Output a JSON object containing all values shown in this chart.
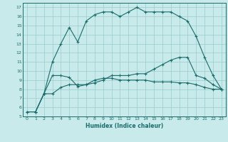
{
  "title": "",
  "xlabel": "Humidex (Indice chaleur)",
  "xlim": [
    -0.5,
    23.5
  ],
  "ylim": [
    5,
    17.5
  ],
  "xticks": [
    0,
    1,
    2,
    3,
    4,
    5,
    6,
    7,
    8,
    9,
    10,
    11,
    12,
    13,
    14,
    15,
    16,
    17,
    18,
    19,
    20,
    21,
    22,
    23
  ],
  "yticks": [
    5,
    6,
    7,
    8,
    9,
    10,
    11,
    12,
    13,
    14,
    15,
    16,
    17
  ],
  "bg_color": "#c8eaea",
  "line_color": "#1a6b6b",
  "grid_color": "#99cccc",
  "curve1_x": [
    0,
    1,
    2,
    3,
    4,
    5,
    6,
    7,
    8,
    9,
    10,
    11,
    12,
    13,
    14,
    15,
    16,
    17,
    18,
    19,
    20,
    21,
    22,
    23
  ],
  "curve1_y": [
    5.5,
    5.5,
    7.5,
    9.5,
    9.5,
    9.3,
    8.3,
    8.5,
    9.0,
    9.2,
    9.2,
    9.0,
    9.0,
    9.0,
    9.0,
    8.8,
    8.8,
    8.8,
    8.7,
    8.7,
    8.5,
    8.2,
    8.0,
    8.0
  ],
  "curve2_x": [
    0,
    1,
    2,
    3,
    4,
    5,
    6,
    7,
    8,
    9,
    10,
    11,
    12,
    13,
    14,
    15,
    16,
    17,
    18,
    19,
    20,
    21,
    22,
    23
  ],
  "curve2_y": [
    5.5,
    5.5,
    7.5,
    7.5,
    8.2,
    8.5,
    8.5,
    8.5,
    8.7,
    9.0,
    9.5,
    9.5,
    9.5,
    9.7,
    9.7,
    10.2,
    10.7,
    11.2,
    11.5,
    11.5,
    9.5,
    9.2,
    8.5,
    8.0
  ],
  "curve3_x": [
    1,
    2,
    3,
    4,
    5,
    6,
    7,
    8,
    9,
    10,
    11,
    12,
    13,
    14,
    15,
    16,
    17,
    18,
    19,
    20,
    21,
    22,
    23
  ],
  "curve3_y": [
    5.5,
    7.5,
    11.0,
    13.0,
    14.8,
    13.2,
    15.5,
    16.2,
    16.5,
    16.5,
    16.0,
    16.5,
    17.0,
    16.5,
    16.5,
    16.5,
    16.5,
    16.0,
    15.5,
    13.8,
    11.5,
    9.5,
    8.0
  ]
}
